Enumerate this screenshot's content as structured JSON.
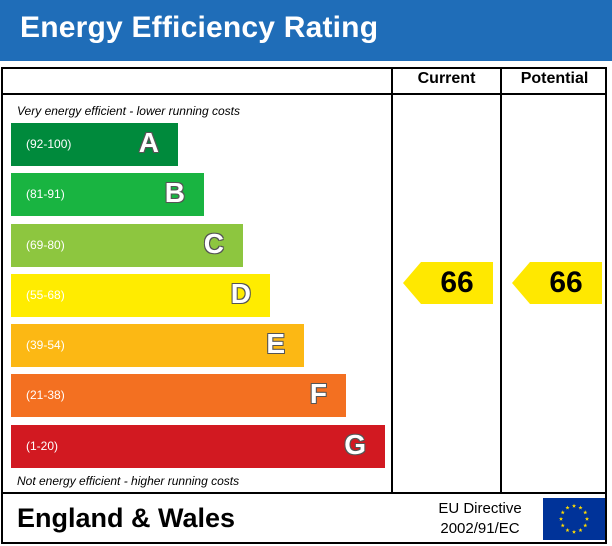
{
  "header": {
    "title": "Energy Efficiency Rating"
  },
  "columns": {
    "current": "Current",
    "potential": "Potential"
  },
  "notes": {
    "top": "Very energy efficient - lower running costs",
    "bottom": "Not energy efficient - higher running costs"
  },
  "chart_data": {
    "type": "bar",
    "title": "Energy Efficiency Rating",
    "categories": [
      "A",
      "B",
      "C",
      "D",
      "E",
      "F",
      "G"
    ],
    "ranges": [
      "(92-100)",
      "(81-91)",
      "(69-80)",
      "(55-68)",
      "(39-54)",
      "(21-38)",
      "(1-20)"
    ],
    "colors": [
      "#008a3c",
      "#19b441",
      "#8dc63f",
      "#ffec00",
      "#fcb814",
      "#f37021",
      "#d21921"
    ],
    "current": 66,
    "potential": 66,
    "indicator_color": "#ffe800"
  },
  "footer": {
    "region": "England & Wales",
    "directive_line1": "EU Directive",
    "directive_line2": "2002/91/EC",
    "flag_icon": "eu-flag-icon",
    "flag_color": "#003399",
    "star_color": "#ffdd00"
  }
}
